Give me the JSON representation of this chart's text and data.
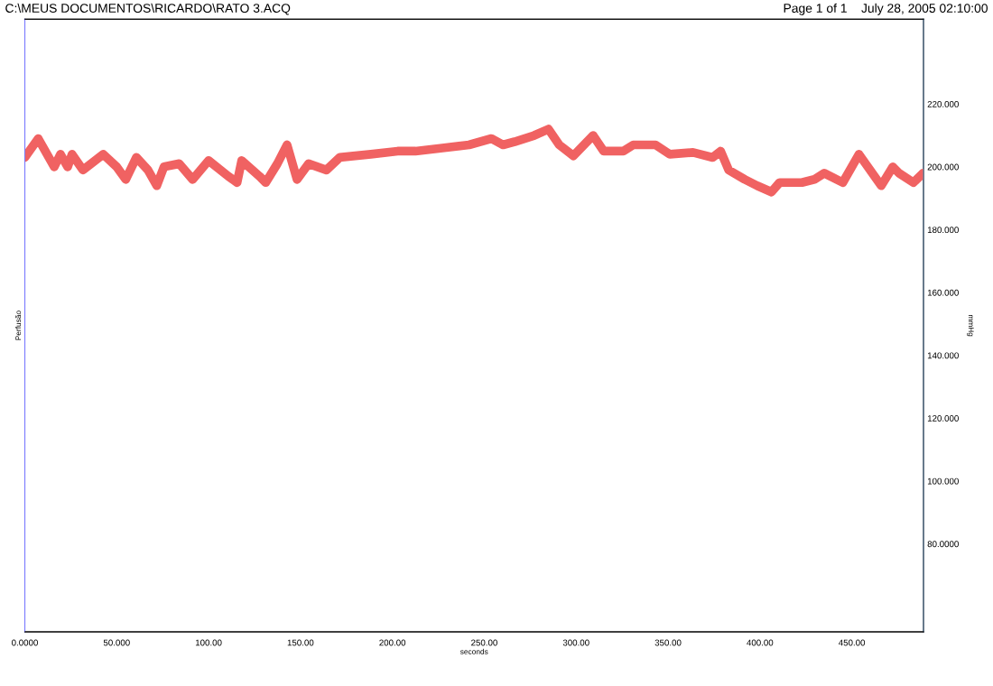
{
  "chart_data": {
    "type": "line",
    "title": "C:\\MEUS DOCUMENTOS\\RICARDO\\RATO 3.ACQ",
    "subtitle": "Page 1 of 1    July 28, 2005 02:10:00",
    "xlabel": "seconds",
    "ylabel": "Perfusão",
    "y2label": "mmHg",
    "x": [
      0,
      7.3,
      16.0,
      19.4,
      23.3,
      25.7,
      31.6,
      42.7,
      50.0,
      54.9,
      60.7,
      67.0,
      71.8,
      75.7,
      84.0,
      91.3,
      100.0,
      110.7,
      115.5,
      118.0,
      127.7,
      131.1,
      137.4,
      142.7,
      148.1,
      154.4,
      164.1,
      171.4,
      188.3,
      202.9,
      212.6,
      227.2,
      241.7,
      253.9,
      260.2,
      266.5,
      277.2,
      284.9,
      290.8,
      298.5,
      309.2,
      315.0,
      325.7,
      331.1,
      343.2,
      351.0,
      363.6,
      374.3,
      378.6,
      383.0,
      391.7,
      398.5,
      406.3,
      410.7,
      422.8,
      429.6,
      435.0,
      445.1,
      453.9,
      466.0,
      472.3,
      475.7,
      483.5,
      488.8
    ],
    "series": [
      {
        "color": "#f06262",
        "axis": "y2",
        "values": [
          203,
          209,
          200,
          204,
          200,
          204,
          199,
          204,
          200,
          196,
          203,
          199,
          194,
          200,
          201,
          196,
          202,
          197,
          195,
          202,
          197,
          195,
          201,
          207,
          196,
          201,
          199,
          203,
          204,
          205,
          205,
          206,
          207,
          209,
          207,
          208,
          210,
          212,
          207,
          203.5,
          210,
          205,
          205,
          207,
          207,
          204,
          204.6,
          203,
          205,
          199,
          196,
          194,
          192,
          195,
          195,
          196,
          198,
          195,
          204,
          194,
          200,
          198,
          195,
          198
        ]
      }
    ],
    "xlim": [
      0,
      489
    ],
    "xticks": [
      {
        "value": 0,
        "label": "0.0000"
      },
      {
        "value": 50,
        "label": "50.000"
      },
      {
        "value": 100,
        "label": "100.00"
      },
      {
        "value": 150,
        "label": "150.00"
      },
      {
        "value": 200,
        "label": "200.00"
      },
      {
        "value": 250,
        "label": "250.00"
      },
      {
        "value": 300,
        "label": "300.00"
      },
      {
        "value": 350,
        "label": "350.00"
      },
      {
        "value": 400,
        "label": "400.00"
      },
      {
        "value": 450,
        "label": "450.00"
      }
    ],
    "y2lim": [
      52,
      247
    ],
    "y2ticks": [
      {
        "value": 80,
        "label": "80.0000"
      },
      {
        "value": 100,
        "label": "100.000"
      },
      {
        "value": 120,
        "label": "120.000"
      },
      {
        "value": 140,
        "label": "140.000"
      },
      {
        "value": 160,
        "label": "160.000"
      },
      {
        "value": 180,
        "label": "180.000"
      },
      {
        "value": 200,
        "label": "200.000"
      },
      {
        "value": 220,
        "label": "220.000"
      }
    ],
    "grid": false,
    "legend": false,
    "marker": "none",
    "line_style": "solid"
  }
}
